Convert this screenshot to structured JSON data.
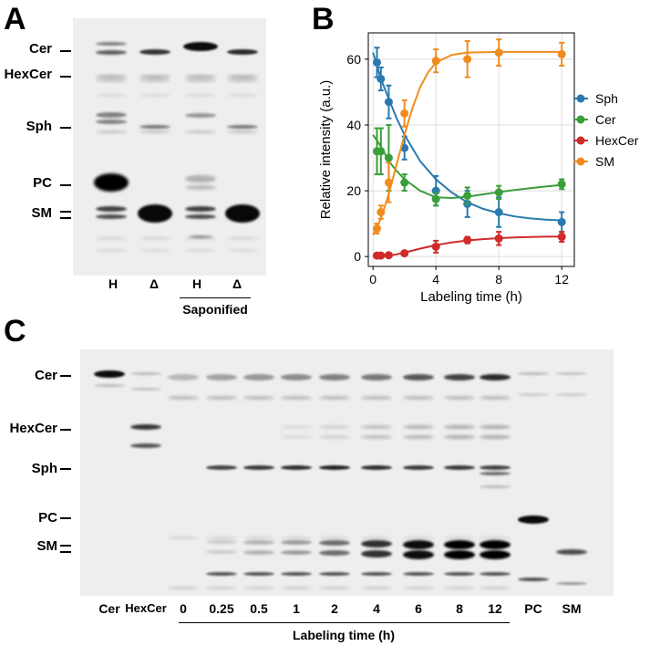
{
  "panelA": {
    "letter": "A",
    "lipids": [
      "Cer",
      "HexCer",
      "Sph",
      "PC",
      "SM"
    ],
    "lanes": [
      "H",
      "Δ",
      "H",
      "Δ"
    ],
    "group": "Saponified"
  },
  "panelB": {
    "letter": "B"
  },
  "panelC": {
    "letter": "C",
    "lipids": [
      "Cer",
      "HexCer",
      "Sph",
      "PC",
      "SM"
    ],
    "lanes": [
      "Cer",
      "HexCer",
      "0",
      "0.25",
      "0.5",
      "1",
      "2",
      "4",
      "6",
      "8",
      "12",
      "PC",
      "SM"
    ],
    "group": "Labeling time (h)"
  },
  "chart_data": {
    "type": "line",
    "xlabel": "Labeling time (h)",
    "ylabel": "Relative intensity (a.u.)",
    "xlim": [
      -0.3,
      12.8
    ],
    "ylim": [
      -3,
      68
    ],
    "xticks": [
      0,
      4,
      8,
      12
    ],
    "yticks": [
      0,
      20,
      40,
      60
    ],
    "grid": true,
    "legend_position": "right",
    "series": [
      {
        "name": "Sph",
        "color": "#2a7ab0",
        "x": [
          0.25,
          0.5,
          1,
          2,
          4,
          6,
          8,
          12
        ],
        "y": [
          59,
          54,
          47,
          33,
          20,
          16,
          13.5,
          10.5
        ],
        "err": [
          4.5,
          3.5,
          5,
          3.5,
          4.5,
          4,
          4.5,
          3
        ],
        "fit": [
          [
            0,
            62
          ],
          [
            0.5,
            54
          ],
          [
            1,
            48
          ],
          [
            1.5,
            42
          ],
          [
            2,
            37
          ],
          [
            3,
            29
          ],
          [
            4,
            23.5
          ],
          [
            5,
            19.5
          ],
          [
            6,
            16.5
          ],
          [
            7,
            14.5
          ],
          [
            8,
            13.2
          ],
          [
            9,
            12.2
          ],
          [
            10,
            11.6
          ],
          [
            11,
            11.2
          ],
          [
            12,
            11
          ]
        ]
      },
      {
        "name": "Cer",
        "color": "#3a9e3a",
        "x": [
          0.25,
          0.5,
          1,
          2,
          4,
          6,
          8,
          12
        ],
        "y": [
          32,
          32,
          30,
          22.5,
          17.5,
          18.5,
          19.5,
          22
        ],
        "err": [
          7,
          7,
          10,
          2.5,
          2,
          2.5,
          2,
          1.5
        ],
        "fit": [
          [
            0,
            37
          ],
          [
            0.5,
            33.5
          ],
          [
            1,
            29
          ],
          [
            1.5,
            26
          ],
          [
            2,
            23.5
          ],
          [
            3,
            20
          ],
          [
            4,
            18
          ],
          [
            5,
            17.8
          ],
          [
            6,
            18.2
          ],
          [
            7,
            18.9
          ],
          [
            8,
            19.6
          ],
          [
            9,
            20.2
          ],
          [
            10,
            20.8
          ],
          [
            11,
            21.3
          ],
          [
            12,
            21.8
          ]
        ]
      },
      {
        "name": "HexCer",
        "color": "#d02a2a",
        "x": [
          0.25,
          0.5,
          1,
          2,
          4,
          6,
          8,
          12
        ],
        "y": [
          0.3,
          0.3,
          0.4,
          1,
          3,
          5,
          5.5,
          6
        ],
        "err": [
          0.3,
          0.3,
          0.3,
          0.5,
          1.8,
          1,
          2,
          1.5
        ],
        "fit": [
          [
            0,
            0
          ],
          [
            0.5,
            0.1
          ],
          [
            1,
            0.3
          ],
          [
            1.5,
            0.7
          ],
          [
            2,
            1.2
          ],
          [
            3,
            2.4
          ],
          [
            4,
            3.5
          ],
          [
            5,
            4.3
          ],
          [
            6,
            4.9
          ],
          [
            7,
            5.3
          ],
          [
            8,
            5.6
          ],
          [
            9,
            5.8
          ],
          [
            10,
            5.95
          ],
          [
            11,
            6.05
          ],
          [
            12,
            6.1
          ]
        ]
      },
      {
        "name": "SM",
        "color": "#f08c1e",
        "x": [
          0.25,
          0.5,
          1,
          2,
          4,
          6,
          8,
          12
        ],
        "y": [
          8.5,
          13.5,
          22.5,
          43.5,
          59.5,
          60,
          62,
          61.5
        ],
        "err": [
          1.5,
          2,
          6,
          4,
          3.5,
          5.5,
          4,
          3.5
        ],
        "fit": [
          [
            0,
            6.5
          ],
          [
            0.5,
            11.5
          ],
          [
            1,
            19
          ],
          [
            1.5,
            28
          ],
          [
            2,
            37
          ],
          [
            2.5,
            45
          ],
          [
            3,
            51.5
          ],
          [
            3.5,
            56
          ],
          [
            4,
            59
          ],
          [
            5,
            61.3
          ],
          [
            6,
            62
          ],
          [
            8,
            62.2
          ],
          [
            12,
            62.2
          ]
        ]
      }
    ]
  }
}
